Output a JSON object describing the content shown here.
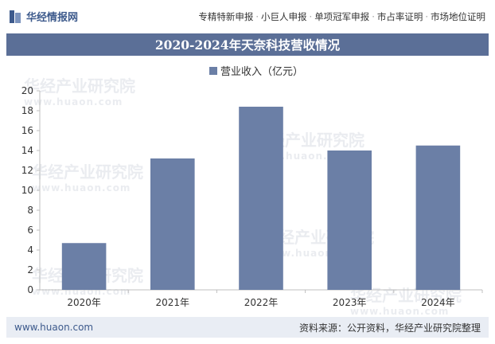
{
  "header": {
    "logo_text": "华经情报网",
    "nav_items": [
      "专精特新申报",
      "小巨人申报",
      "单项冠军申报",
      "市占率证明",
      "市场地位证明"
    ],
    "nav_separator": "·"
  },
  "title": "2020-2024年天奈科技营收情况",
  "watermark": {
    "cn": "华经产业研究院",
    "en": "www.huaon.com"
  },
  "footer": {
    "url": "www.huaon.com",
    "source": "资料来源：公开资料，华经产业研究院整理"
  },
  "colors": {
    "bar": "#6b7fa6",
    "title_bg": "#5b6f97",
    "footer_bg": "#e9edf4"
  },
  "chart_data": {
    "type": "bar",
    "categories": [
      "2020年",
      "2021年",
      "2022年",
      "2023年",
      "2024年"
    ],
    "series": [
      {
        "name": "营业收入（亿元）",
        "values": [
          4.7,
          13.2,
          18.4,
          14.0,
          14.5
        ]
      }
    ],
    "ylim": [
      0,
      20
    ],
    "yticks": [
      0,
      2,
      4,
      6,
      8,
      10,
      12,
      14,
      16,
      18,
      20
    ],
    "legend": "top-center",
    "grid": false
  }
}
